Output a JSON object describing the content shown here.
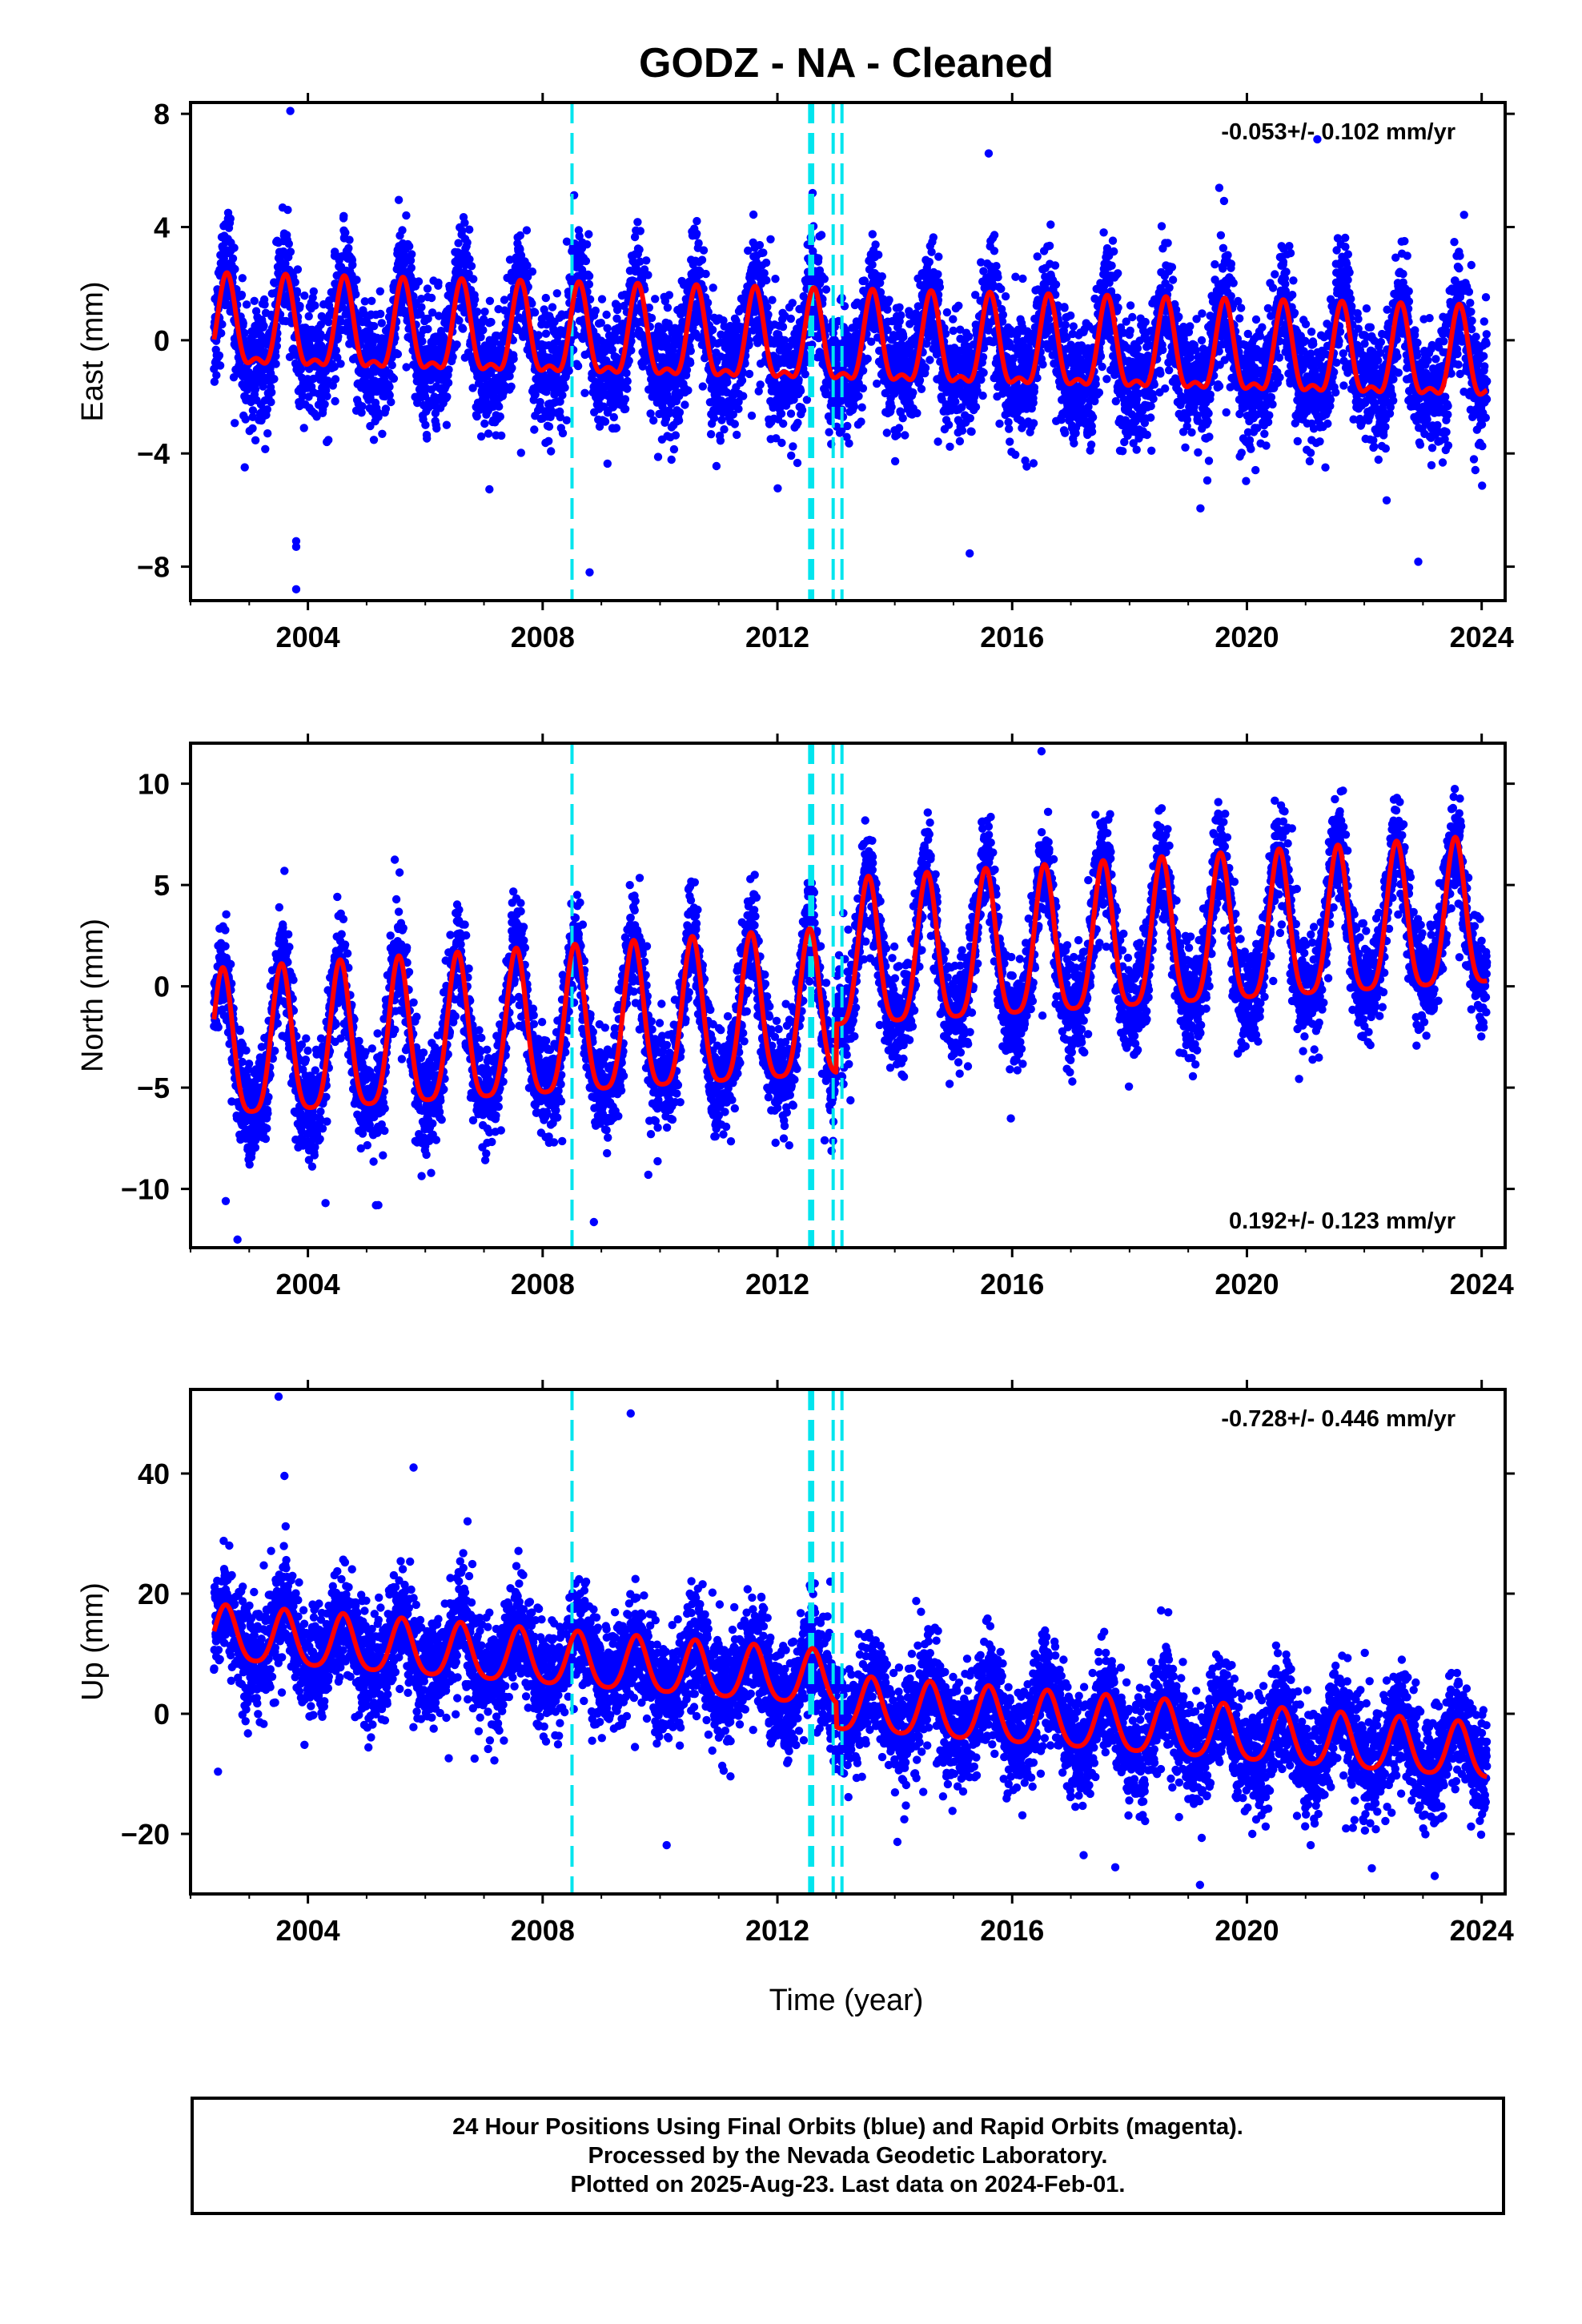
{
  "title": "GODZ  - NA - Cleaned",
  "xlabel": "Time (year)",
  "footer": {
    "line1": "24 Hour Positions Using Final Orbits (blue) and Rapid Orbits (magenta).",
    "line2": "Processed by the Nevada Geodetic Laboratory.",
    "line3": "Plotted on 2025-Aug-23. Last data on 2024-Feb-01."
  },
  "colors": {
    "points": "#0000ff",
    "model": "#ff0000",
    "equipment_changes": "#00e5ee",
    "frame": "#000000"
  },
  "chart_data": [
    {
      "type": "scatter",
      "component": "east",
      "ylabel": "East (mm)",
      "rate_label": "-0.053+/- 0.102 mm/yr",
      "xlim": [
        2002.0,
        2024.4
      ],
      "ylim": [
        -9.2,
        8.4
      ],
      "x_ticks": [
        2004,
        2008,
        2012,
        2016,
        2020,
        2024
      ],
      "y_ticks": [
        -8,
        -4,
        0,
        4,
        8
      ],
      "y_tick_labels": [
        "−8",
        "−4",
        "0",
        "4",
        "8"
      ],
      "x_tick_labels": [
        "2004",
        "2008",
        "2012",
        "2016",
        "2020",
        "2024"
      ],
      "data_start": 2002.4,
      "data_end": 2024.09,
      "model": {
        "offset": 0.3,
        "trend": -0.053,
        "annual_amp": 1.5,
        "annual_phase_peak": 0.62,
        "semi_amp": 0.6,
        "noise_sd": 1.0
      },
      "outliers": [
        [
          2003.7,
          8.1
        ],
        [
          2003.8,
          -7.3
        ],
        [
          2003.8,
          -7.1
        ],
        [
          2003.8,
          -8.8
        ],
        [
          2008.8,
          -8.2
        ],
        [
          2021.2,
          7.1
        ],
        [
          2012.6,
          5.2
        ],
        [
          2015.6,
          6.6
        ]
      ],
      "equipment_changes": [
        2008.5,
        2012.55,
        2012.6,
        2012.95,
        2013.1
      ]
    },
    {
      "type": "scatter",
      "component": "north",
      "ylabel": "North (mm)",
      "rate_label": "0.192+/- 0.123 mm/yr",
      "xlim": [
        2002.0,
        2024.4
      ],
      "ylim": [
        -12.9,
        12.0
      ],
      "x_ticks": [
        2004,
        2008,
        2012,
        2016,
        2020,
        2024
      ],
      "y_ticks": [
        -10,
        -5,
        0,
        5,
        10
      ],
      "y_tick_labels": [
        "−10",
        "−5",
        "0",
        "5",
        "10"
      ],
      "x_tick_labels": [
        "2004",
        "2008",
        "2012",
        "2016",
        "2020",
        "2024"
      ],
      "data_start": 2002.4,
      "data_end": 2024.09,
      "model": {
        "offset": -3.5,
        "trend": 0.192,
        "annual_amp": 3.6,
        "annual_phase_peak": 0.55,
        "semi_amp": 0.8,
        "noise_sd": 1.2,
        "step_year": 2013.0,
        "step_size": 2.4
      },
      "outliers": [
        [
          2002.6,
          -10.6
        ],
        [
          2002.8,
          -12.5
        ],
        [
          2003.6,
          5.7
        ],
        [
          2009.8,
          -9.3
        ],
        [
          2016.5,
          11.6
        ],
        [
          2004.3,
          -10.7
        ],
        [
          2005.2,
          -10.8
        ]
      ],
      "equipment_changes": [
        2008.5,
        2012.55,
        2012.6,
        2012.95,
        2013.1
      ]
    },
    {
      "type": "scatter",
      "component": "up",
      "ylabel": "Up (mm)",
      "rate_label": "-0.728+/- 0.446 mm/yr",
      "xlim": [
        2002.0,
        2024.4
      ],
      "ylim": [
        -30.0,
        54.0
      ],
      "x_ticks": [
        2004,
        2008,
        2012,
        2016,
        2020,
        2024
      ],
      "y_ticks": [
        -20,
        0,
        20,
        40
      ],
      "y_tick_labels": [
        "−20",
        "0",
        "20",
        "40"
      ],
      "x_tick_labels": [
        "2004",
        "2008",
        "2012",
        "2016",
        "2020",
        "2024"
      ],
      "data_start": 2002.4,
      "data_end": 2024.09,
      "model": {
        "offset": 13.0,
        "trend": -0.728,
        "annual_amp": 4.5,
        "annual_phase_peak": 0.6,
        "semi_amp": 0.8,
        "noise_sd": 4.2,
        "step_year": 2013.0,
        "step_size": -4.0
      },
      "outliers": [
        [
          2003.5,
          52.8
        ],
        [
          2009.5,
          50.0
        ],
        [
          2005.8,
          41.0
        ],
        [
          2003.6,
          39.6
        ],
        [
          2019.2,
          -28.5
        ],
        [
          2023.2,
          -27.0
        ],
        [
          2012.9,
          22.0
        ]
      ],
      "equipment_changes": [
        2008.5,
        2012.55,
        2012.6,
        2012.95,
        2013.1
      ]
    }
  ]
}
